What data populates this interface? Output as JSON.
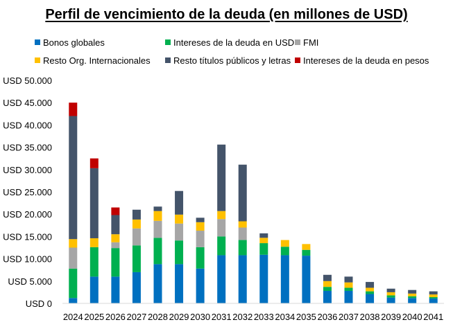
{
  "chart_data": {
    "type": "bar",
    "stacked": true,
    "title": "Perfil de vencimiento de la deuda (en millones de USD)",
    "xlabel": "",
    "ylabel": "",
    "ylim": [
      0,
      50000
    ],
    "ytick_values": [
      0,
      5000,
      10000,
      15000,
      20000,
      25000,
      30000,
      35000,
      40000,
      45000,
      50000
    ],
    "ytick_labels": [
      "USD 0",
      "USD 5.000",
      "USD 10.000",
      "USD 15.000",
      "USD 20.000",
      "USD 25.000",
      "USD 30.000",
      "USD 35.000",
      "USD 40.000",
      "USD 45.000",
      "USD 50.000"
    ],
    "grid": false,
    "legend_position": "top",
    "categories": [
      "2024",
      "2025",
      "2026",
      "2027",
      "2028",
      "2029",
      "2030",
      "2031",
      "2032",
      "2033",
      "2034",
      "2035",
      "2036",
      "2037",
      "2038",
      "2039",
      "2040",
      "2041"
    ],
    "series": [
      {
        "name": "Bonos globales",
        "color": "#0070c0",
        "values": [
          1200,
          6000,
          6000,
          7000,
          8800,
          8800,
          7800,
          10800,
          10800,
          10900,
          10800,
          10700,
          2800,
          2800,
          2100,
          1300,
          1200,
          1100
        ]
      },
      {
        "name": "Intereses de la deuda en USD",
        "color": "#00b050",
        "values": [
          6600,
          6600,
          6400,
          6000,
          5900,
          5300,
          4800,
          4200,
          3400,
          2600,
          1900,
          1300,
          900,
          700,
          600,
          500,
          400,
          300
        ]
      },
      {
        "name": "FMI",
        "color": "#a6a6a6",
        "values": [
          4700,
          0,
          1300,
          3800,
          3800,
          3800,
          3700,
          3900,
          2800,
          0,
          0,
          0,
          0,
          0,
          0,
          0,
          0,
          0
        ]
      },
      {
        "name": "Resto Org. Internacionales",
        "color": "#ffc000",
        "values": [
          1900,
          2000,
          1800,
          2000,
          2200,
          2000,
          1900,
          1800,
          1400,
          1200,
          1500,
          1300,
          1300,
          1200,
          800,
          700,
          600,
          600
        ]
      },
      {
        "name": "Resto títulos públicos y letras",
        "color": "#44546a",
        "values": [
          27600,
          15700,
          4300,
          2200,
          1000,
          5300,
          1000,
          14900,
          12700,
          1000,
          0,
          0,
          1400,
          1300,
          1300,
          800,
          800,
          700
        ]
      },
      {
        "name": "Intereses de la deuda en pesos",
        "color": "#c00000",
        "values": [
          3000,
          2200,
          1700,
          0,
          0,
          0,
          0,
          0,
          0,
          0,
          0,
          0,
          0,
          0,
          0,
          0,
          0,
          0
        ]
      }
    ]
  }
}
